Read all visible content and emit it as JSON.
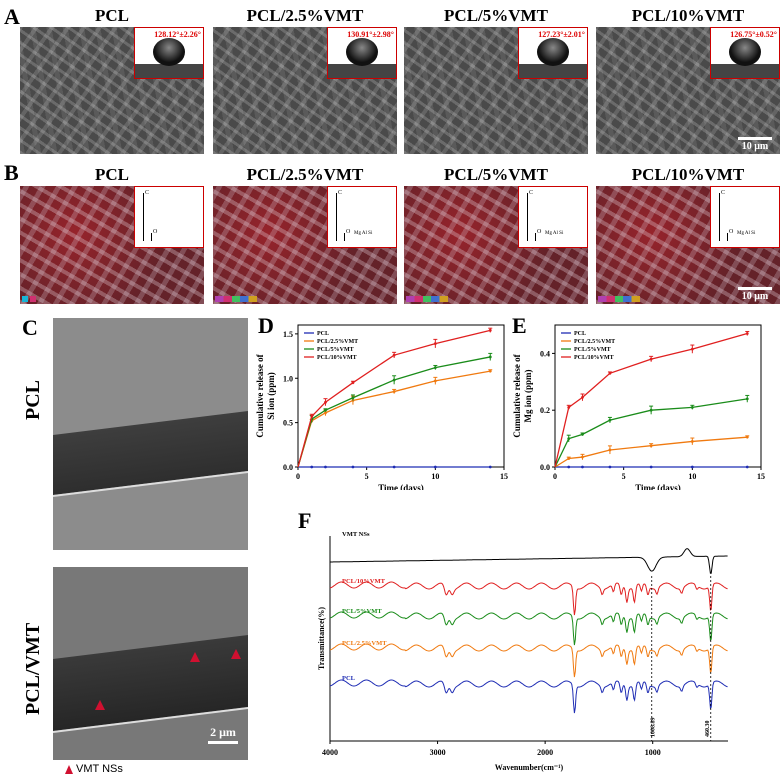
{
  "panel_labels": {
    "A": "A",
    "B": "B",
    "C": "C",
    "D": "D",
    "E": "E",
    "F": "F"
  },
  "sample_titles": [
    "PCL",
    "PCL/2.5%VMT",
    "PCL/5%VMT",
    "PCL/10%VMT"
  ],
  "contact_angles": [
    "128.12°±2.26°",
    "130.91°±2.98°",
    "127.23°±2.01°",
    "126.75°±0.52°"
  ],
  "scale_bars": {
    "a": "10 μm",
    "b": "10 μm",
    "c": "2 μm"
  },
  "eds_peaks": [
    {
      "c": "C",
      "o": "O",
      "other": ""
    },
    {
      "c": "C",
      "o": "O",
      "other": "Mg Al Si"
    },
    {
      "c": "C",
      "o": "O",
      "other": "Mg Al Si"
    },
    {
      "c": "C",
      "o": "O",
      "other": "Mg Al Si"
    }
  ],
  "tem_labels": {
    "top": "PCL",
    "bottom": "PCL/VMT",
    "legend": "VMT NSs"
  },
  "colors": {
    "PCL": "#1f2db4",
    "PCL/2.5%VMT": "#f07a10",
    "PCL/5%VMT": "#1a8c1a",
    "PCL/10%VMT": "#e02020",
    "VMT NSs": "#000000",
    "arrow": "#d01030"
  },
  "chart_data": [
    {
      "type": "line",
      "panel": "D",
      "xlabel": "Time (days)",
      "ylabel": "Cumulative release of Si ion (ppm)",
      "ylabel_lines": [
        "Cumulative release of",
        "Si ion (ppm)"
      ],
      "xlim": [
        0,
        15
      ],
      "ylim": [
        0,
        1.6
      ],
      "xticks": [
        0,
        5,
        10,
        15
      ],
      "yticks": [
        0.0,
        0.5,
        1.0,
        1.5
      ],
      "x": [
        0,
        1,
        2,
        4,
        7,
        10,
        14
      ],
      "series": [
        {
          "name": "PCL",
          "values": [
            0,
            0,
            0,
            0,
            0,
            0,
            0
          ]
        },
        {
          "name": "PCL/2.5%VMT",
          "values": [
            0,
            0.52,
            0.61,
            0.75,
            0.85,
            0.97,
            1.08
          ]
        },
        {
          "name": "PCL/5%VMT",
          "values": [
            0,
            0.54,
            0.64,
            0.78,
            0.98,
            1.12,
            1.24
          ]
        },
        {
          "name": "PCL/10%VMT",
          "values": [
            0,
            0.57,
            0.73,
            0.95,
            1.26,
            1.39,
            1.54
          ]
        }
      ]
    },
    {
      "type": "line",
      "panel": "E",
      "xlabel": "Time (days)",
      "ylabel": "Cumulative release of Mg ion (ppm)",
      "ylabel_lines": [
        "Cumulative release of",
        "Mg ion (ppm)"
      ],
      "xlim": [
        0,
        15
      ],
      "ylim": [
        0,
        0.5
      ],
      "xticks": [
        0,
        5,
        10,
        15
      ],
      "yticks": [
        0.0,
        0.2,
        0.4
      ],
      "x": [
        0,
        1,
        2,
        4,
        7,
        10,
        14
      ],
      "series": [
        {
          "name": "PCL",
          "values": [
            0,
            0,
            0,
            0,
            0,
            0,
            0
          ]
        },
        {
          "name": "PCL/2.5%VMT",
          "values": [
            0,
            0.03,
            0.035,
            0.06,
            0.075,
            0.09,
            0.105
          ]
        },
        {
          "name": "PCL/5%VMT",
          "values": [
            0,
            0.1,
            0.115,
            0.165,
            0.2,
            0.21,
            0.24
          ]
        },
        {
          "name": "PCL/10%VMT",
          "values": [
            0,
            0.21,
            0.245,
            0.33,
            0.38,
            0.415,
            0.47
          ]
        }
      ]
    },
    {
      "type": "line",
      "panel": "F",
      "xlabel": "Wavenumber(cm⁻¹)",
      "ylabel": "Transmittance(%)",
      "xlim": [
        4000,
        300
      ],
      "xticks": [
        4000,
        3000,
        2000,
        1000
      ],
      "series": [
        {
          "name": "VMT NSs"
        },
        {
          "name": "PCL/10%VMT"
        },
        {
          "name": "PCL/5%VMT"
        },
        {
          "name": "PCL/2.5%VMT"
        },
        {
          "name": "PCL"
        }
      ],
      "annotations": [
        "1008.89",
        "460.30"
      ]
    }
  ]
}
